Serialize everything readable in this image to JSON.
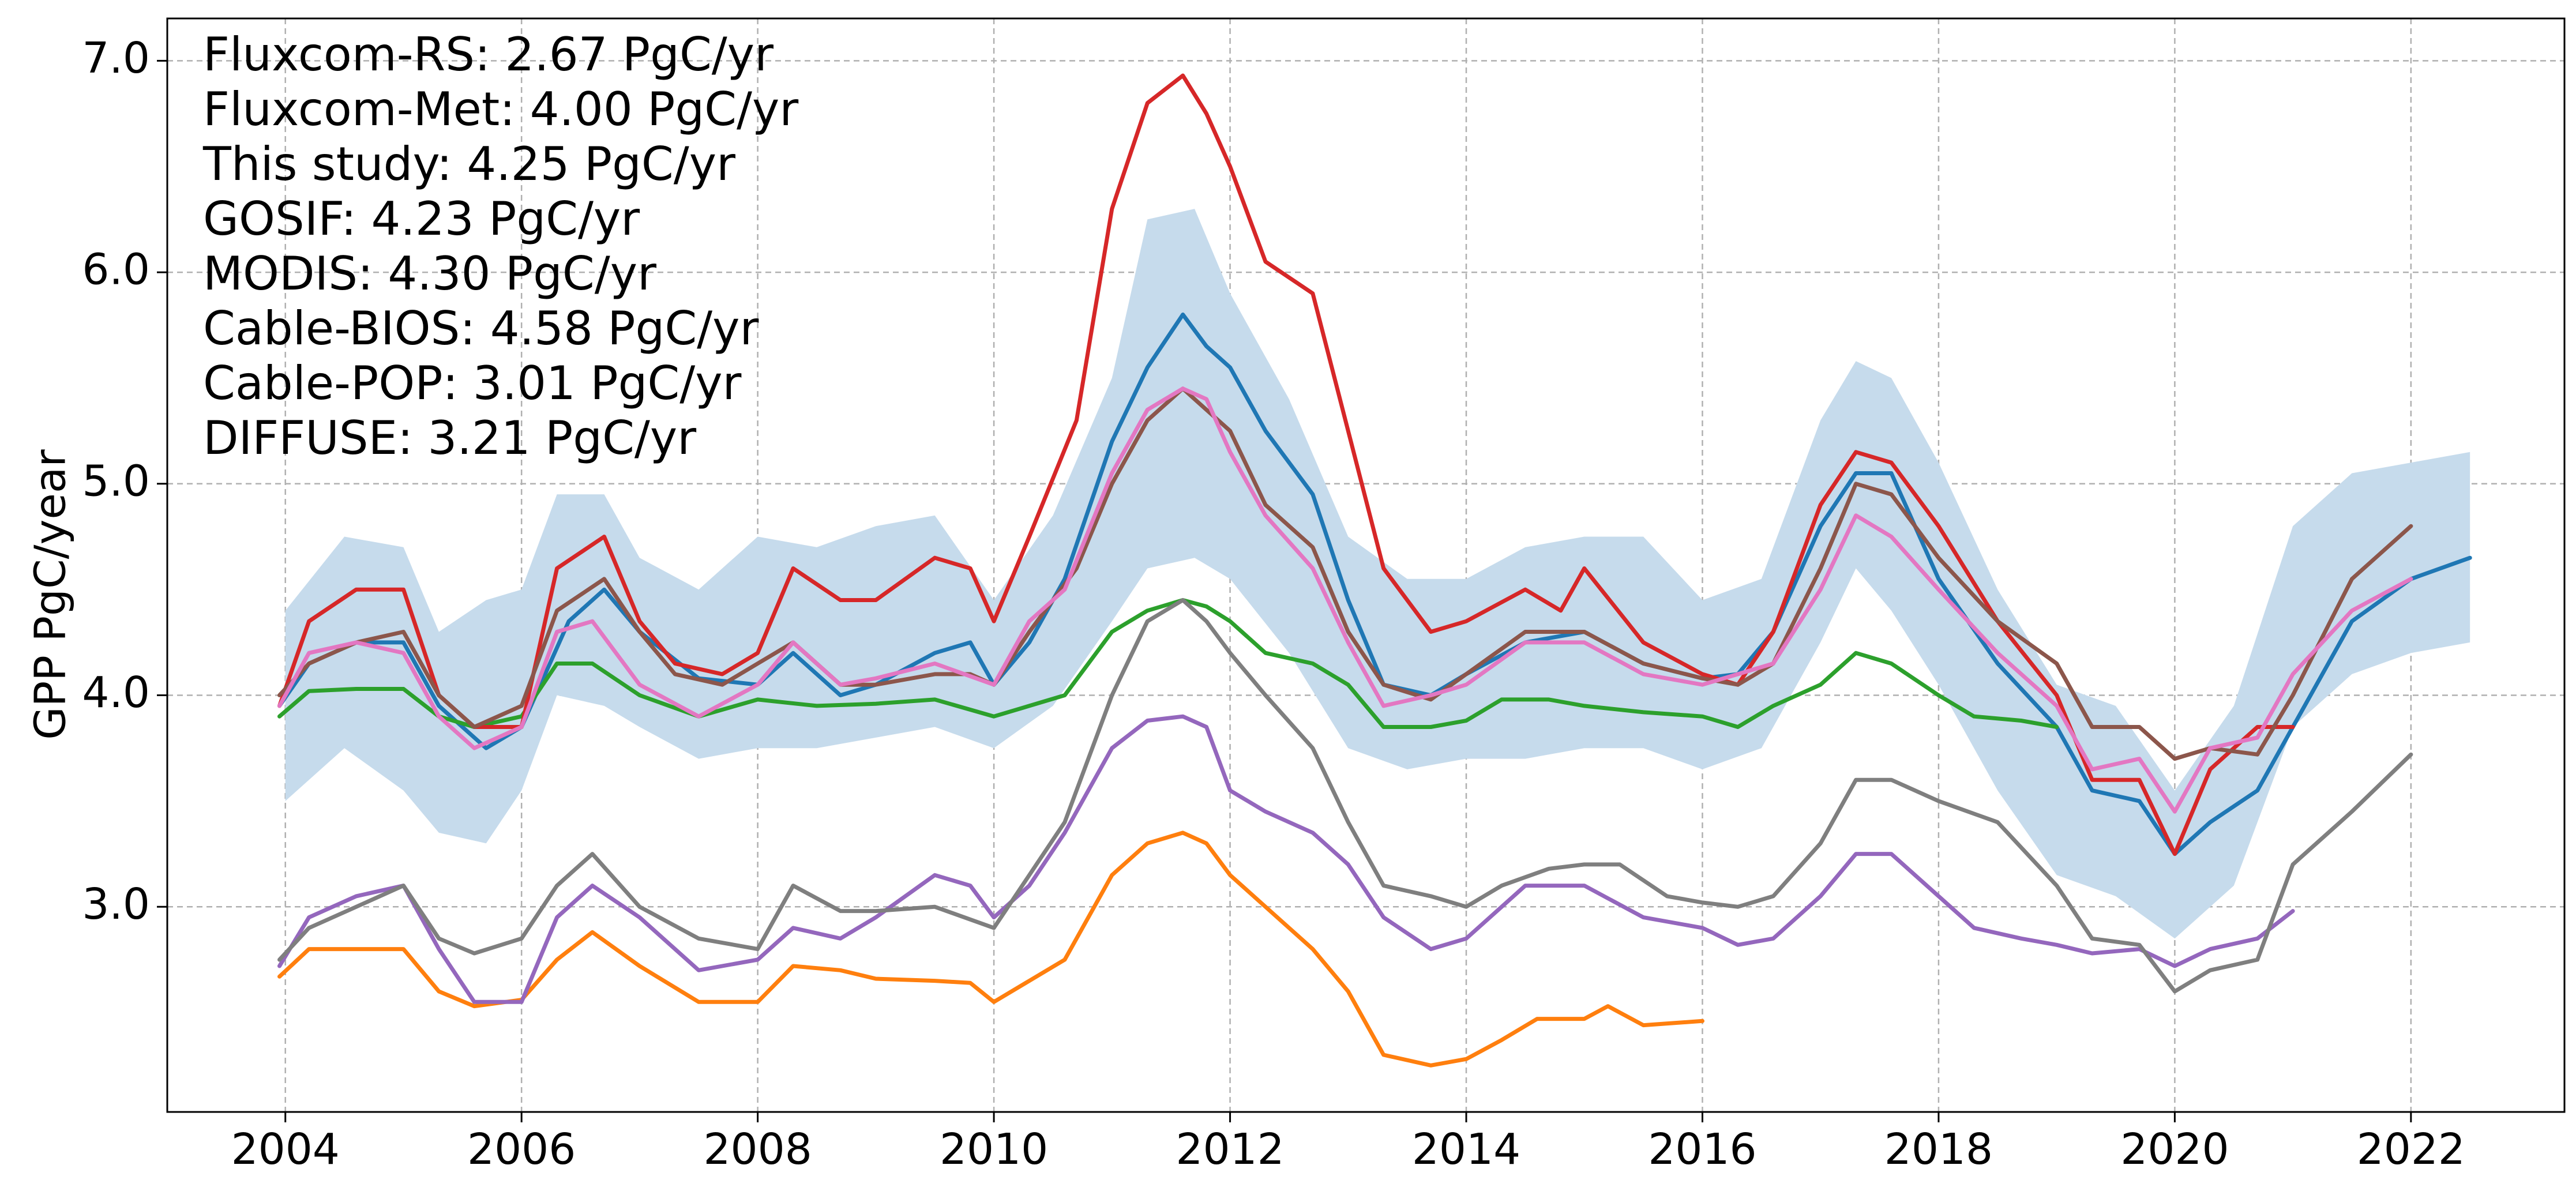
{
  "chart_data": {
    "type": "line",
    "title": "",
    "xlabel": "",
    "ylabel": "GPP PgC/year",
    "xlim": [
      2003.0,
      2023.3
    ],
    "ylim": [
      2.03,
      7.2
    ],
    "xticks": [
      2004,
      2006,
      2008,
      2010,
      2012,
      2014,
      2016,
      2018,
      2020,
      2022
    ],
    "xtick_labels": [
      "2004",
      "2006",
      "2008",
      "2010",
      "2012",
      "2014",
      "2016",
      "2018",
      "2020",
      "2022"
    ],
    "yticks": [
      3.0,
      4.0,
      5.0,
      6.0,
      7.0
    ],
    "ytick_labels": [
      "3.0",
      "4.0",
      "5.0",
      "6.0",
      "7.0"
    ],
    "grid": true,
    "annotations": [
      "Fluxcom-RS: 2.67 PgC/yr",
      "Fluxcom-Met: 4.00 PgC/yr",
      "This study: 4.25 PgC/yr",
      "GOSIF: 4.23 PgC/yr",
      "MODIS: 4.30 PgC/yr",
      "Cable-BIOS: 4.58 PgC/yr",
      "Cable-POP: 3.01 PgC/yr",
      "DIFFUSE: 3.21 PgC/yr"
    ],
    "band": {
      "color": "#c6dbec",
      "x": [
        2004.0,
        2004.5,
        2005.0,
        2005.3,
        2005.7,
        2006.0,
        2006.3,
        2006.7,
        2007.0,
        2007.5,
        2008.0,
        2008.5,
        2009.0,
        2009.5,
        2010.0,
        2010.5,
        2011.0,
        2011.3,
        2011.7,
        2012.0,
        2012.5,
        2013.0,
        2013.5,
        2014.0,
        2014.5,
        2015.0,
        2015.5,
        2016.0,
        2016.5,
        2017.0,
        2017.3,
        2017.6,
        2018.0,
        2018.5,
        2019.0,
        2019.5,
        2020.0,
        2020.5,
        2021.0,
        2021.5,
        2022.0,
        2022.5
      ],
      "upper": [
        4.4,
        4.75,
        4.7,
        4.3,
        4.45,
        4.5,
        4.95,
        4.95,
        4.65,
        4.5,
        4.75,
        4.7,
        4.8,
        4.85,
        4.45,
        4.85,
        5.5,
        6.25,
        6.3,
        5.9,
        5.4,
        4.75,
        4.55,
        4.55,
        4.7,
        4.75,
        4.75,
        4.45,
        4.55,
        5.3,
        5.58,
        5.5,
        5.1,
        4.5,
        4.05,
        3.95,
        3.55,
        3.95,
        4.8,
        5.05,
        5.1,
        5.15
      ],
      "lower": [
        3.5,
        3.75,
        3.55,
        3.35,
        3.3,
        3.55,
        4.0,
        3.95,
        3.85,
        3.7,
        3.75,
        3.75,
        3.8,
        3.85,
        3.75,
        3.95,
        4.35,
        4.6,
        4.65,
        4.55,
        4.2,
        3.75,
        3.65,
        3.7,
        3.7,
        3.75,
        3.75,
        3.65,
        3.75,
        4.25,
        4.6,
        4.4,
        4.05,
        3.55,
        3.15,
        3.05,
        2.85,
        3.1,
        3.85,
        4.1,
        4.2,
        4.25
      ]
    },
    "series": [
      {
        "color": "#1f77b4",
        "x": [
          2003.95,
          2004.2,
          2004.6,
          2005.0,
          2005.3,
          2005.7,
          2006.0,
          2006.4,
          2006.7,
          2007.0,
          2007.5,
          2008.0,
          2008.3,
          2008.7,
          2009.0,
          2009.5,
          2009.8,
          2010.0,
          2010.3,
          2010.6,
          2011.0,
          2011.3,
          2011.6,
          2011.8,
          2012.0,
          2012.3,
          2012.7,
          2013.0,
          2013.3,
          2013.7,
          2014.0,
          2014.5,
          2015.0,
          2015.5,
          2016.0,
          2016.3,
          2016.6,
          2017.0,
          2017.3,
          2017.6,
          2018.0,
          2018.5,
          2019.0,
          2019.3,
          2019.7,
          2020.0,
          2020.3,
          2020.7,
          2021.0,
          2021.5,
          2022.0,
          2022.5
        ],
        "y": [
          3.95,
          4.15,
          4.25,
          4.25,
          3.95,
          3.75,
          3.85,
          4.35,
          4.5,
          4.3,
          4.08,
          4.05,
          4.2,
          4.0,
          4.05,
          4.2,
          4.25,
          4.05,
          4.25,
          4.55,
          5.2,
          5.55,
          5.8,
          5.65,
          5.55,
          5.25,
          4.95,
          4.45,
          4.05,
          4.0,
          4.1,
          4.25,
          4.3,
          4.15,
          4.08,
          4.1,
          4.3,
          4.8,
          5.05,
          5.05,
          4.55,
          4.15,
          3.85,
          3.55,
          3.5,
          3.25,
          3.4,
          3.55,
          3.85,
          4.35,
          4.55,
          4.65
        ]
      },
      {
        "color": "#ff7f0e",
        "x": [
          2003.95,
          2004.2,
          2004.6,
          2005.0,
          2005.3,
          2005.6,
          2006.0,
          2006.3,
          2006.6,
          2007.0,
          2007.5,
          2008.0,
          2008.3,
          2008.7,
          2009.0,
          2009.5,
          2009.8,
          2010.0,
          2010.3,
          2010.6,
          2011.0,
          2011.3,
          2011.6,
          2011.8,
          2012.0,
          2012.3,
          2012.7,
          2013.0,
          2013.3,
          2013.7,
          2014.0,
          2014.3,
          2014.6,
          2015.0,
          2015.2,
          2015.5,
          2016.0
        ],
        "y": [
          2.67,
          2.8,
          2.8,
          2.8,
          2.6,
          2.53,
          2.56,
          2.75,
          2.88,
          2.72,
          2.55,
          2.55,
          2.72,
          2.7,
          2.66,
          2.65,
          2.64,
          2.55,
          2.65,
          2.75,
          3.15,
          3.3,
          3.35,
          3.3,
          3.15,
          3.0,
          2.8,
          2.6,
          2.3,
          2.25,
          2.28,
          2.37,
          2.47,
          2.47,
          2.53,
          2.44,
          2.46
        ]
      },
      {
        "color": "#2ca02c",
        "x": [
          2003.95,
          2004.2,
          2004.6,
          2005.0,
          2005.3,
          2005.6,
          2006.0,
          2006.3,
          2006.6,
          2007.0,
          2007.5,
          2008.0,
          2008.5,
          2009.0,
          2009.5,
          2010.0,
          2010.3,
          2010.6,
          2010.8,
          2011.0,
          2011.3,
          2011.6,
          2011.8,
          2012.0,
          2012.3,
          2012.7,
          2013.0,
          2013.3,
          2013.7,
          2014.0,
          2014.3,
          2014.7,
          2015.0,
          2015.5,
          2016.0,
          2016.3,
          2016.6,
          2017.0,
          2017.3,
          2017.6,
          2018.0,
          2018.3,
          2018.7,
          2019.0
        ],
        "y": [
          3.9,
          4.02,
          4.03,
          4.03,
          3.9,
          3.85,
          3.9,
          4.15,
          4.15,
          4.0,
          3.9,
          3.98,
          3.95,
          3.96,
          3.98,
          3.9,
          3.95,
          4.0,
          4.15,
          4.3,
          4.4,
          4.45,
          4.42,
          4.35,
          4.2,
          4.15,
          4.05,
          3.85,
          3.85,
          3.88,
          3.98,
          3.98,
          3.95,
          3.92,
          3.9,
          3.85,
          3.95,
          4.05,
          4.2,
          4.15,
          4.0,
          3.9,
          3.88,
          3.85
        ]
      },
      {
        "color": "#d62728",
        "x": [
          2003.95,
          2004.2,
          2004.6,
          2005.0,
          2005.3,
          2005.6,
          2006.0,
          2006.3,
          2006.7,
          2007.0,
          2007.3,
          2007.7,
          2008.0,
          2008.3,
          2008.7,
          2009.0,
          2009.5,
          2009.8,
          2010.0,
          2010.3,
          2010.7,
          2011.0,
          2011.3,
          2011.6,
          2011.8,
          2012.0,
          2012.3,
          2012.7,
          2013.0,
          2013.3,
          2013.7,
          2014.0,
          2014.5,
          2014.8,
          2015.0,
          2015.5,
          2016.0,
          2016.3,
          2016.6,
          2017.0,
          2017.3,
          2017.6,
          2018.0,
          2018.5,
          2019.0,
          2019.3,
          2019.7,
          2020.0,
          2020.3,
          2020.7,
          2021.0
        ],
        "y": [
          3.95,
          4.35,
          4.5,
          4.5,
          4.0,
          3.85,
          3.85,
          4.6,
          4.75,
          4.35,
          4.15,
          4.1,
          4.2,
          4.6,
          4.45,
          4.45,
          4.65,
          4.6,
          4.35,
          4.75,
          5.3,
          6.3,
          6.8,
          6.93,
          6.75,
          6.5,
          6.05,
          5.9,
          5.25,
          4.6,
          4.3,
          4.35,
          4.5,
          4.4,
          4.6,
          4.25,
          4.1,
          4.05,
          4.3,
          4.9,
          5.15,
          5.1,
          4.8,
          4.35,
          4.0,
          3.6,
          3.6,
          3.25,
          3.65,
          3.85,
          3.85
        ]
      },
      {
        "color": "#9467bd",
        "x": [
          2003.95,
          2004.2,
          2004.6,
          2005.0,
          2005.3,
          2005.6,
          2006.0,
          2006.3,
          2006.6,
          2007.0,
          2007.5,
          2008.0,
          2008.3,
          2008.7,
          2009.0,
          2009.5,
          2009.8,
          2010.0,
          2010.3,
          2010.6,
          2011.0,
          2011.3,
          2011.6,
          2011.8,
          2012.0,
          2012.3,
          2012.7,
          2013.0,
          2013.3,
          2013.7,
          2014.0,
          2014.5,
          2015.0,
          2015.5,
          2016.0,
          2016.3,
          2016.6,
          2017.0,
          2017.3,
          2017.6,
          2018.0,
          2018.3,
          2018.7,
          2019.0,
          2019.3,
          2019.7,
          2020.0,
          2020.3,
          2020.7,
          2021.0
        ],
        "y": [
          2.72,
          2.95,
          3.05,
          3.1,
          2.8,
          2.55,
          2.55,
          2.95,
          3.1,
          2.95,
          2.7,
          2.75,
          2.9,
          2.85,
          2.95,
          3.15,
          3.1,
          2.95,
          3.1,
          3.35,
          3.75,
          3.88,
          3.9,
          3.85,
          3.55,
          3.45,
          3.35,
          3.2,
          2.95,
          2.8,
          2.85,
          3.1,
          3.1,
          2.95,
          2.9,
          2.82,
          2.85,
          3.05,
          3.25,
          3.25,
          3.05,
          2.9,
          2.85,
          2.82,
          2.78,
          2.8,
          2.72,
          2.8,
          2.85,
          2.98
        ]
      },
      {
        "color": "#8c564b",
        "x": [
          2003.95,
          2004.2,
          2004.6,
          2005.0,
          2005.3,
          2005.6,
          2006.0,
          2006.3,
          2006.7,
          2007.0,
          2007.3,
          2007.7,
          2008.0,
          2008.3,
          2008.7,
          2009.0,
          2009.5,
          2009.8,
          2010.0,
          2010.3,
          2010.7,
          2011.0,
          2011.3,
          2011.6,
          2011.8,
          2012.0,
          2012.3,
          2012.7,
          2013.0,
          2013.3,
          2013.7,
          2014.0,
          2014.5,
          2015.0,
          2015.5,
          2016.0,
          2016.3,
          2016.6,
          2017.0,
          2017.3,
          2017.6,
          2018.0,
          2018.5,
          2019.0,
          2019.3,
          2019.7,
          2020.0,
          2020.3,
          2020.7,
          2021.0,
          2021.5,
          2022.0
        ],
        "y": [
          4.0,
          4.15,
          4.25,
          4.3,
          4.0,
          3.85,
          3.95,
          4.4,
          4.55,
          4.3,
          4.1,
          4.05,
          4.15,
          4.25,
          4.05,
          4.05,
          4.1,
          4.1,
          4.05,
          4.3,
          4.6,
          5.0,
          5.3,
          5.45,
          5.35,
          5.25,
          4.9,
          4.7,
          4.3,
          4.05,
          3.98,
          4.1,
          4.3,
          4.3,
          4.15,
          4.08,
          4.05,
          4.15,
          4.6,
          5.0,
          4.95,
          4.65,
          4.35,
          4.15,
          3.85,
          3.85,
          3.7,
          3.75,
          3.72,
          4.0,
          4.55,
          4.8
        ]
      },
      {
        "color": "#e377c2",
        "x": [
          2003.95,
          2004.2,
          2004.6,
          2005.0,
          2005.3,
          2005.6,
          2006.0,
          2006.3,
          2006.6,
          2007.0,
          2007.5,
          2008.0,
          2008.3,
          2008.7,
          2009.0,
          2009.5,
          2010.0,
          2010.3,
          2010.6,
          2011.0,
          2011.3,
          2011.6,
          2011.8,
          2012.0,
          2012.3,
          2012.7,
          2013.0,
          2013.3,
          2013.7,
          2014.0,
          2014.5,
          2015.0,
          2015.5,
          2016.0,
          2016.3,
          2016.6,
          2017.0,
          2017.3,
          2017.6,
          2018.0,
          2018.5,
          2019.0,
          2019.3,
          2019.7,
          2020.0,
          2020.3,
          2020.7,
          2021.0,
          2021.5,
          2022.0
        ],
        "y": [
          3.95,
          4.2,
          4.25,
          4.2,
          3.9,
          3.75,
          3.85,
          4.3,
          4.35,
          4.05,
          3.9,
          4.05,
          4.25,
          4.05,
          4.08,
          4.15,
          4.05,
          4.35,
          4.5,
          5.05,
          5.35,
          5.45,
          5.4,
          5.15,
          4.85,
          4.6,
          4.25,
          3.95,
          4.0,
          4.05,
          4.25,
          4.25,
          4.1,
          4.05,
          4.1,
          4.15,
          4.5,
          4.85,
          4.75,
          4.5,
          4.2,
          3.95,
          3.65,
          3.7,
          3.45,
          3.75,
          3.8,
          4.1,
          4.4,
          4.55
        ]
      },
      {
        "color": "#7f7f7f",
        "x": [
          2003.95,
          2004.2,
          2004.6,
          2005.0,
          2005.3,
          2005.6,
          2006.0,
          2006.3,
          2006.6,
          2007.0,
          2007.5,
          2008.0,
          2008.3,
          2008.7,
          2009.0,
          2009.5,
          2010.0,
          2010.3,
          2010.6,
          2011.0,
          2011.3,
          2011.6,
          2011.8,
          2012.0,
          2012.3,
          2012.7,
          2013.0,
          2013.3,
          2013.7,
          2014.0,
          2014.3,
          2014.7,
          2015.0,
          2015.3,
          2015.7,
          2016.0,
          2016.3,
          2016.6,
          2017.0,
          2017.3,
          2017.6,
          2018.0,
          2018.5,
          2019.0,
          2019.3,
          2019.7,
          2020.0,
          2020.3,
          2020.7,
          2021.0,
          2021.5,
          2022.0
        ],
        "y": [
          2.75,
          2.9,
          3.0,
          3.1,
          2.85,
          2.78,
          2.85,
          3.1,
          3.25,
          3.0,
          2.85,
          2.8,
          3.1,
          2.98,
          2.98,
          3.0,
          2.9,
          3.15,
          3.4,
          4.0,
          4.35,
          4.45,
          4.35,
          4.2,
          4.0,
          3.75,
          3.4,
          3.1,
          3.05,
          3.0,
          3.1,
          3.18,
          3.2,
          3.2,
          3.05,
          3.02,
          3.0,
          3.05,
          3.3,
          3.6,
          3.6,
          3.5,
          3.4,
          3.1,
          2.85,
          2.82,
          2.6,
          2.7,
          2.75,
          3.2,
          3.45,
          3.72
        ]
      }
    ]
  }
}
